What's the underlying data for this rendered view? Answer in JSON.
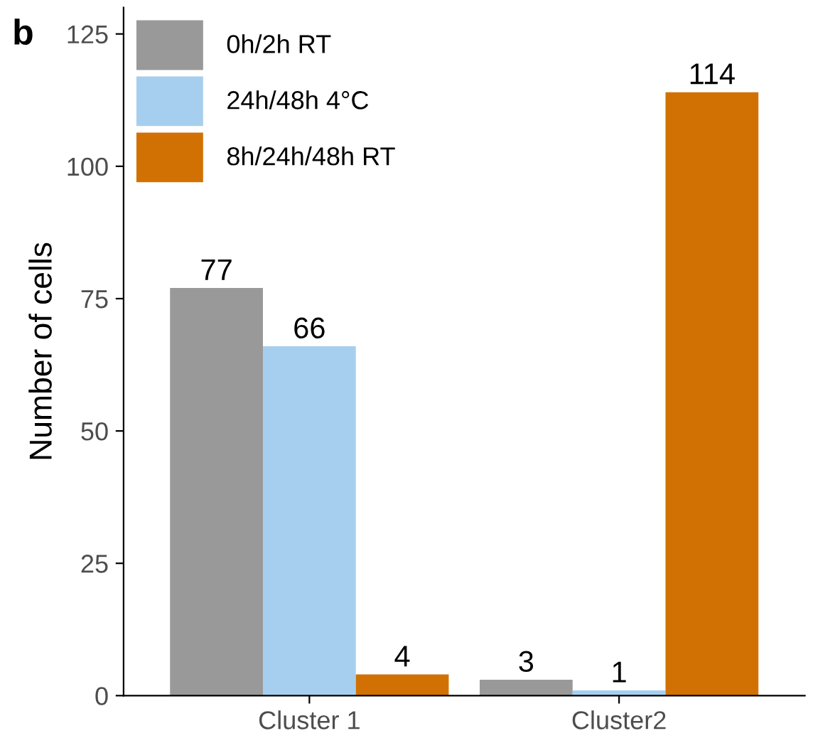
{
  "chart_data": {
    "type": "bar",
    "ylabel": "Number of cells",
    "annotations": [
      "b"
    ],
    "categories": [
      "Cluster 1",
      "Cluster2"
    ],
    "series": [
      {
        "name": "0h/2h RT",
        "color": "#999999",
        "values": [
          77,
          3
        ]
      },
      {
        "name": "24h/48h 4°C",
        "color": "#a6cfef",
        "values": [
          66,
          1
        ]
      },
      {
        "name": "8h/24h/48h RT",
        "color": "#d27103",
        "values": [
          4,
          114
        ]
      }
    ],
    "ylim": [
      0,
      130
    ],
    "yticks": [
      0,
      25,
      50,
      75,
      100,
      125
    ],
    "data_labels": true,
    "grid": false,
    "legend": "top left"
  }
}
